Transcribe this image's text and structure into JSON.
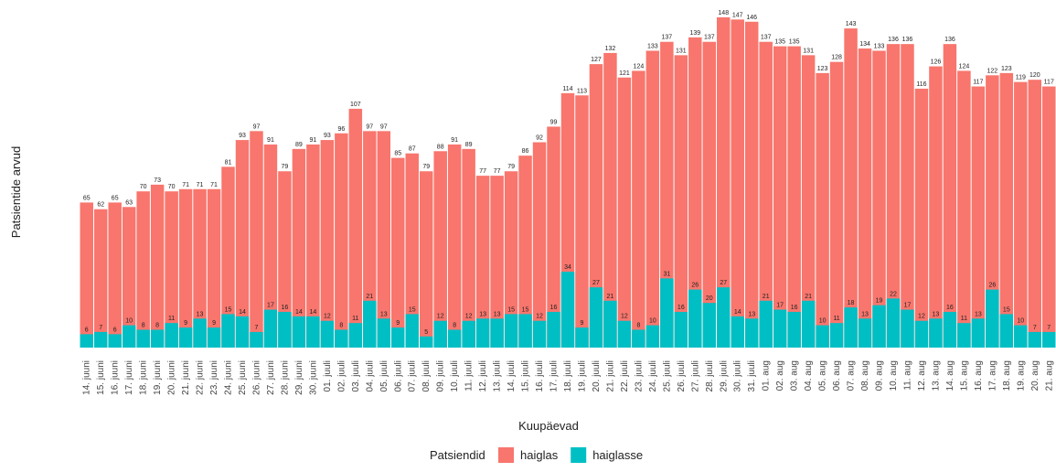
{
  "chart_data": {
    "type": "bar",
    "overlap": true,
    "x_label": "Kuupäevad",
    "y_label": "Patsientide arvud",
    "legend_title": "Patsiendid",
    "legend": "bottom",
    "categories": [
      "14. juuni",
      "15. juuni",
      "16. juuni",
      "17. juuni",
      "18. juuni",
      "19. juuni",
      "20. juuni",
      "21. juuni",
      "22. juuni",
      "23. juuni",
      "24. juuni",
      "25. juuni",
      "26. juuni",
      "27. juuni",
      "28. juuni",
      "29. juuni",
      "30. juuni",
      "01. juuli",
      "02. juuli",
      "03. juuli",
      "04. juuli",
      "05. juuli",
      "06. juuli",
      "07. juuli",
      "08. juuli",
      "09. juuli",
      "10. juuli",
      "11. juuli",
      "12. juuli",
      "13. juuli",
      "14. juuli",
      "15. juuli",
      "16. juuli",
      "17. juuli",
      "18. juuli",
      "19. juuli",
      "20. juuli",
      "21. juuli",
      "22. juuli",
      "23. juuli",
      "24. juuli",
      "25. juuli",
      "26. juuli",
      "27. juuli",
      "28. juuli",
      "29. juuli",
      "30. juuli",
      "31. juuli",
      "01. aug",
      "02. aug",
      "03. aug",
      "04. aug",
      "05. aug",
      "06. aug",
      "07. aug",
      "08. aug",
      "09. aug",
      "10. aug",
      "11. aug",
      "12. aug",
      "13. aug",
      "14. aug",
      "15. aug",
      "16. aug",
      "17. aug",
      "18. aug",
      "19. aug",
      "20. aug",
      "21. aug"
    ],
    "series": [
      {
        "name": "haiglas",
        "color": "#F8766D",
        "values": [
          65,
          62,
          65,
          63,
          70,
          73,
          70,
          71,
          71,
          71,
          81,
          93,
          97,
          91,
          79,
          89,
          91,
          93,
          96,
          107,
          97,
          97,
          85,
          87,
          79,
          88,
          91,
          89,
          77,
          77,
          79,
          86,
          92,
          99,
          114,
          113,
          127,
          132,
          121,
          124,
          133,
          137,
          131,
          139,
          137,
          148,
          147,
          146,
          137,
          135,
          135,
          131,
          123,
          128,
          143,
          134,
          133,
          136,
          136,
          116,
          126,
          136,
          124,
          117,
          122,
          123,
          119,
          120,
          117
        ]
      },
      {
        "name": "haiglasse",
        "color": "#00BFC4",
        "values": [
          6,
          7,
          6,
          10,
          8,
          8,
          11,
          9,
          13,
          9,
          15,
          14,
          7,
          17,
          16,
          14,
          14,
          12,
          8,
          11,
          21,
          13,
          9,
          15,
          5,
          12,
          8,
          12,
          13,
          13,
          15,
          15,
          12,
          16,
          34,
          9,
          27,
          21,
          12,
          8,
          10,
          31,
          16,
          26,
          20,
          27,
          14,
          13,
          21,
          17,
          16,
          21,
          10,
          11,
          18,
          13,
          19,
          22,
          17,
          12,
          13,
          16,
          11,
          13,
          26,
          15,
          10,
          7,
          7
        ]
      }
    ],
    "ylim": [
      0,
      150
    ]
  }
}
